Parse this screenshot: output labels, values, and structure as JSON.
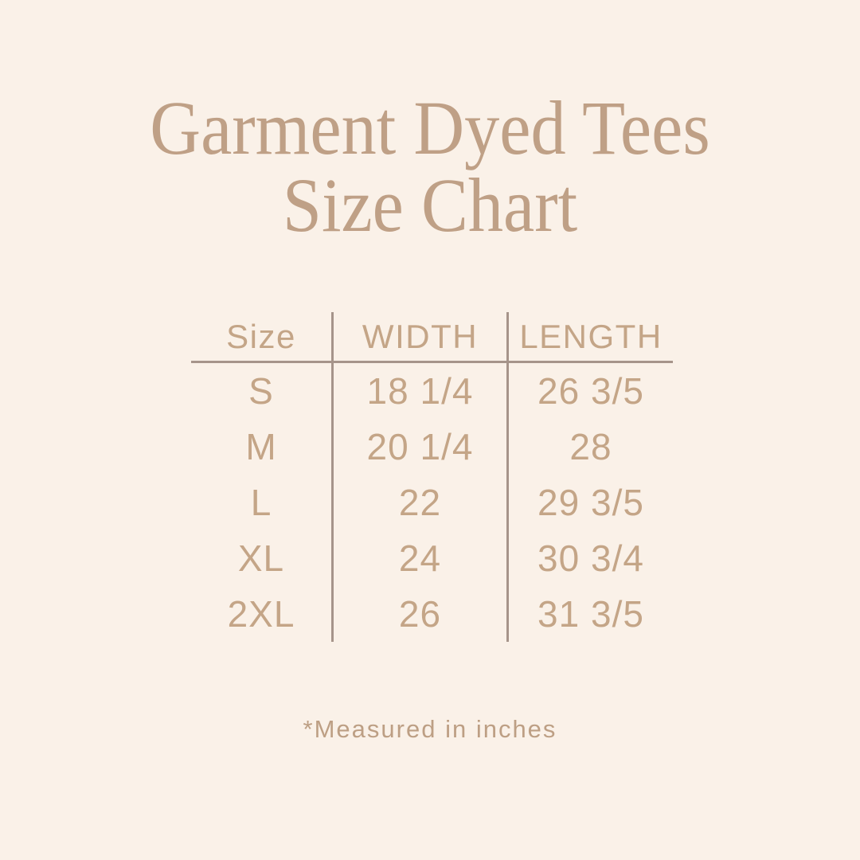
{
  "page": {
    "background_color": "#faf1e8",
    "accent_text_color": "#bfa086",
    "table_line_color": "#a6948a"
  },
  "title": {
    "line1": "Garment Dyed Tees",
    "line2": "Size Chart"
  },
  "table": {
    "columns": [
      "Size",
      "WIDTH",
      "LENGTH"
    ],
    "rows": [
      {
        "size": "S",
        "width": "18 1/4",
        "length": "26 3/5"
      },
      {
        "size": "M",
        "width": "20 1/4",
        "length": "28"
      },
      {
        "size": "L",
        "width": "22",
        "length": "29 3/5"
      },
      {
        "size": "XL",
        "width": "24",
        "length": "30 3/4"
      },
      {
        "size": "2XL",
        "width": "26",
        "length": "31 3/5"
      }
    ]
  },
  "footer": {
    "note": "*Measured in inches"
  },
  "chart_data": {
    "type": "table",
    "title": "Garment Dyed Tees Size Chart",
    "columns": [
      "Size",
      "WIDTH",
      "LENGTH"
    ],
    "rows": [
      [
        "S",
        "18 1/4",
        "26 3/5"
      ],
      [
        "M",
        "20 1/4",
        "28"
      ],
      [
        "L",
        "22",
        "29 3/5"
      ],
      [
        "XL",
        "24",
        "30 3/4"
      ],
      [
        "2XL",
        "26",
        "31 3/5"
      ]
    ],
    "units": "inches",
    "note": "*Measured in inches"
  }
}
